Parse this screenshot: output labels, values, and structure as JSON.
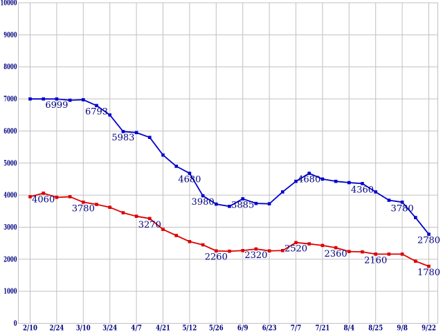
{
  "chart_data": {
    "type": "line",
    "title": "",
    "xlabel": "",
    "ylabel": "",
    "ylim": [
      0,
      10000
    ],
    "grid": true,
    "legend": "none",
    "x_tick_labels": [
      "2/10",
      "2/24",
      "3/10",
      "3/24",
      "4/7",
      "4/21",
      "5/12",
      "5/26",
      "6/9",
      "6/23",
      "7/7",
      "7/21",
      "8/4",
      "8/25",
      "9/8",
      "9/22"
    ],
    "y_tick_labels": [
      "10000",
      "9000",
      "8000",
      "7000",
      "6000",
      "5000",
      "4000",
      "3000",
      "2000",
      "1000",
      "0"
    ],
    "points_per_labeled_interval": 2,
    "series": [
      {
        "name": "blue-series",
        "color": "#0000CC",
        "values": [
          7000,
          7000,
          6999,
          6960,
          6975,
          6793,
          6500,
          5983,
          5950,
          5800,
          5250,
          4900,
          4680,
          3980,
          3720,
          3650,
          3885,
          3740,
          3730,
          4100,
          4430,
          4680,
          4500,
          4430,
          4390,
          4360,
          4100,
          3840,
          3780,
          3300,
          2780
        ],
        "point_labels": [
          {
            "index": 2,
            "text": "6999"
          },
          {
            "index": 5,
            "text": "6793"
          },
          {
            "index": 7,
            "text": "5983"
          },
          {
            "index": 12,
            "text": "4680"
          },
          {
            "index": 13,
            "text": "3980"
          },
          {
            "index": 16,
            "text": "3885"
          },
          {
            "index": 21,
            "text": "4680"
          },
          {
            "index": 25,
            "text": "4360"
          },
          {
            "index": 28,
            "text": "3780"
          },
          {
            "index": 30,
            "text": "2780"
          }
        ]
      },
      {
        "name": "red-series",
        "color": "#DC0000",
        "values": [
          3950,
          4060,
          3930,
          3950,
          3780,
          3710,
          3620,
          3450,
          3340,
          3270,
          2930,
          2740,
          2550,
          2450,
          2260,
          2250,
          2270,
          2320,
          2260,
          2270,
          2520,
          2480,
          2430,
          2360,
          2240,
          2230,
          2160,
          2160,
          2160,
          1940,
          1780
        ],
        "point_labels": [
          {
            "index": 1,
            "text": "4060"
          },
          {
            "index": 4,
            "text": "3780"
          },
          {
            "index": 9,
            "text": "3270"
          },
          {
            "index": 14,
            "text": "2260"
          },
          {
            "index": 17,
            "text": "2320"
          },
          {
            "index": 20,
            "text": "2520"
          },
          {
            "index": 23,
            "text": "2360"
          },
          {
            "index": 26,
            "text": "2160"
          },
          {
            "index": 30,
            "text": "1780"
          }
        ]
      }
    ],
    "colors": {
      "grid": "#C0C0C0",
      "axis_label": "#000080",
      "data_label": "#000080",
      "background": "#FFFFFF"
    }
  }
}
